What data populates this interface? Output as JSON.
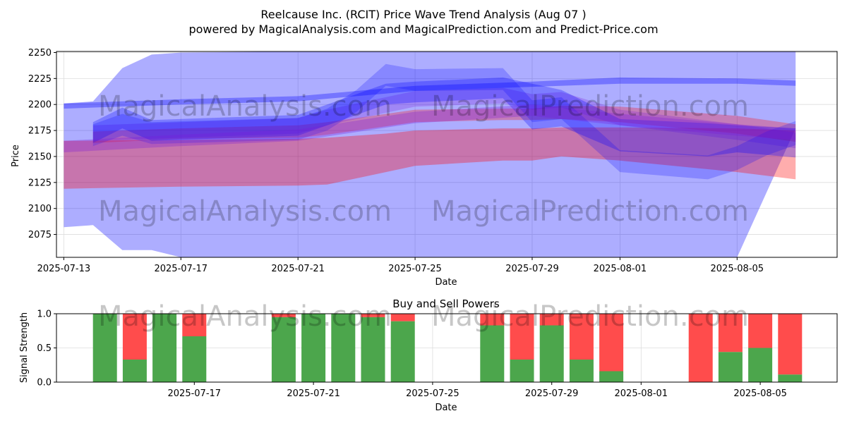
{
  "title_line1": "Reelcause Inc. (RCIT) Price Wave Trend Analysis (Aug 07 )",
  "title_line2": "powered by MagicalAnalysis.com and MagicalPrediction.com and Predict-Price.com",
  "watermarks": [
    "MagicalAnalysis.com",
    "MagicalPrediction.com"
  ],
  "colors": {
    "blue_band": "#0000ff",
    "red_band": "#ff0000",
    "buy": "#4ca64c",
    "sell": "#ff4c4c"
  },
  "chart_data": [
    {
      "type": "area",
      "xlabel": "Date",
      "ylabel": "Price",
      "ylim": [
        2053,
        2251
      ],
      "yticks": [
        2075,
        2100,
        2125,
        2150,
        2175,
        2200,
        2225,
        2250
      ],
      "xlim": [
        "2025-07-12T18:00",
        "2025-08-08T10:00"
      ],
      "xticks": [
        "2025-07-13",
        "2025-07-17",
        "2025-07-21",
        "2025-07-25",
        "2025-07-29",
        "2025-08-01",
        "2025-08-05"
      ],
      "grid": true,
      "series": [
        {
          "color": "blue",
          "opacity": 0.32,
          "x": [
            "2025-07-13",
            "2025-07-14",
            "2025-07-15",
            "2025-07-16",
            "2025-07-17",
            "2025-07-21",
            "2025-07-25",
            "2025-07-29",
            "2025-08-01",
            "2025-08-05",
            "2025-08-07"
          ],
          "upper": [
            2201,
            2203,
            2235,
            2248,
            2250,
            2251,
            2251,
            2251,
            2251,
            2251,
            2251
          ],
          "lower": [
            2082,
            2084,
            2060,
            2060,
            2053,
            2053,
            2053,
            2053,
            2053,
            2053,
            2177
          ]
        },
        {
          "color": "blue",
          "opacity": 0.32,
          "x": [
            "2025-07-13",
            "2025-07-17",
            "2025-07-21",
            "2025-07-25",
            "2025-07-29",
            "2025-08-01",
            "2025-08-05",
            "2025-08-07"
          ],
          "upper": [
            2201,
            2205,
            2208,
            2218,
            2222,
            2226,
            2225,
            2223
          ],
          "lower": [
            2196,
            2200,
            2203,
            2213,
            2217,
            2220,
            2220,
            2218
          ]
        },
        {
          "color": "red",
          "opacity": 0.32,
          "x": [
            "2025-07-13",
            "2025-07-17",
            "2025-07-21",
            "2025-07-22",
            "2025-07-24",
            "2025-07-25",
            "2025-07-28",
            "2025-07-29",
            "2025-07-30",
            "2025-08-01",
            "2025-08-05",
            "2025-08-07"
          ],
          "upper": [
            2165,
            2166,
            2167,
            2168,
            2172,
            2175,
            2177,
            2177,
            2178,
            2178,
            2177,
            2175
          ],
          "lower": [
            2119,
            2121,
            2122,
            2123,
            2135,
            2141,
            2146,
            2146,
            2150,
            2146,
            2135,
            2128
          ]
        },
        {
          "color": "red",
          "opacity": 0.28,
          "x": [
            "2025-07-14",
            "2025-07-17",
            "2025-07-21",
            "2025-07-22",
            "2025-07-25",
            "2025-07-28",
            "2025-07-29",
            "2025-07-30",
            "2025-08-01",
            "2025-08-05",
            "2025-08-07"
          ],
          "upper": [
            2174,
            2177,
            2180,
            2183,
            2195,
            2196,
            2196,
            2199,
            2198,
            2189,
            2181
          ],
          "lower": [
            2163,
            2167,
            2168,
            2171,
            2183,
            2185,
            2185,
            2186,
            2183,
            2172,
            2164
          ]
        },
        {
          "color": "purple",
          "opacity": 0.26,
          "x": [
            "2025-07-14",
            "2025-07-16",
            "2025-07-21",
            "2025-07-22",
            "2025-07-25",
            "2025-07-28",
            "2025-07-29",
            "2025-07-30",
            "2025-08-01",
            "2025-08-05",
            "2025-08-07"
          ],
          "upper": [
            2180,
            2182,
            2187,
            2195,
            2213,
            2216,
            2210,
            2212,
            2195,
            2181,
            2173
          ],
          "lower": [
            2165,
            2167,
            2172,
            2180,
            2198,
            2201,
            2195,
            2197,
            2180,
            2166,
            2158
          ]
        },
        {
          "color": "blue",
          "opacity": 0.28,
          "x": [
            "2025-07-14",
            "2025-07-15",
            "2025-07-16",
            "2025-07-21",
            "2025-07-22",
            "2025-07-24",
            "2025-07-25",
            "2025-07-28",
            "2025-07-29",
            "2025-07-30",
            "2025-08-01",
            "2025-08-04",
            "2025-08-05",
            "2025-08-07"
          ],
          "upper": [
            2183,
            2197,
            2185,
            2190,
            2200,
            2220,
            2222,
            2226,
            2220,
            2214,
            2186,
            2182,
            2180,
            2177
          ],
          "lower": [
            2163,
            2177,
            2165,
            2170,
            2180,
            2200,
            2202,
            2206,
            2176,
            2179,
            2155,
            2150,
            2154,
            2149
          ]
        },
        {
          "color": "blue",
          "opacity": 0.22,
          "x": [
            "2025-07-14",
            "2025-07-15",
            "2025-07-16",
            "2025-07-21",
            "2025-07-22",
            "2025-07-23",
            "2025-07-24",
            "2025-07-25",
            "2025-07-28",
            "2025-07-29",
            "2025-07-30",
            "2025-08-01",
            "2025-08-04",
            "2025-08-05",
            "2025-08-06",
            "2025-08-07"
          ],
          "upper": [
            2181,
            2191,
            2183,
            2187,
            2196,
            2214,
            2239,
            2234,
            2235,
            2204,
            2207,
            2156,
            2151,
            2160,
            2174,
            2184
          ],
          "lower": [
            2160,
            2170,
            2162,
            2166,
            2175,
            2193,
            2218,
            2213,
            2214,
            2183,
            2186,
            2135,
            2128,
            2137,
            2151,
            2161
          ]
        },
        {
          "color": "purple",
          "opacity": 0.3,
          "x": [
            "2025-07-13",
            "2025-07-17",
            "2025-07-21",
            "2025-07-25",
            "2025-07-29",
            "2025-08-01",
            "2025-08-05",
            "2025-08-07"
          ],
          "upper": [
            2165,
            2171,
            2176,
            2193,
            2200,
            2191,
            2181,
            2177
          ],
          "lower": [
            2154,
            2160,
            2165,
            2182,
            2189,
            2180,
            2170,
            2166
          ]
        }
      ]
    },
    {
      "type": "bar",
      "title": "Buy and Sell Powers",
      "xlabel": "Date",
      "ylabel": "Signal Strength",
      "ylim": [
        0,
        1.0
      ],
      "yticks": [
        "0.0",
        "0.5",
        "1.0"
      ],
      "xticks": [
        "2025-07-17",
        "2025-07-21",
        "2025-07-25",
        "2025-07-29",
        "2025-08-01",
        "2025-08-05"
      ],
      "grid": true,
      "series": [
        {
          "name": "Buy",
          "color": "green"
        },
        {
          "name": "Sell",
          "color": "red"
        }
      ],
      "x": [
        "2025-07-14",
        "2025-07-15",
        "2025-07-16",
        "2025-07-17",
        "2025-07-20",
        "2025-07-21",
        "2025-07-22",
        "2025-07-23",
        "2025-07-24",
        "2025-07-27",
        "2025-07-28",
        "2025-07-29",
        "2025-07-30",
        "2025-07-31",
        "2025-08-03",
        "2025-08-04",
        "2025-08-05",
        "2025-08-06"
      ],
      "buy": [
        1.0,
        0.33,
        1.0,
        0.67,
        0.95,
        1.0,
        1.0,
        0.95,
        0.89,
        0.83,
        0.33,
        0.83,
        0.33,
        0.16,
        0.0,
        0.44,
        0.5,
        0.11
      ]
    }
  ]
}
